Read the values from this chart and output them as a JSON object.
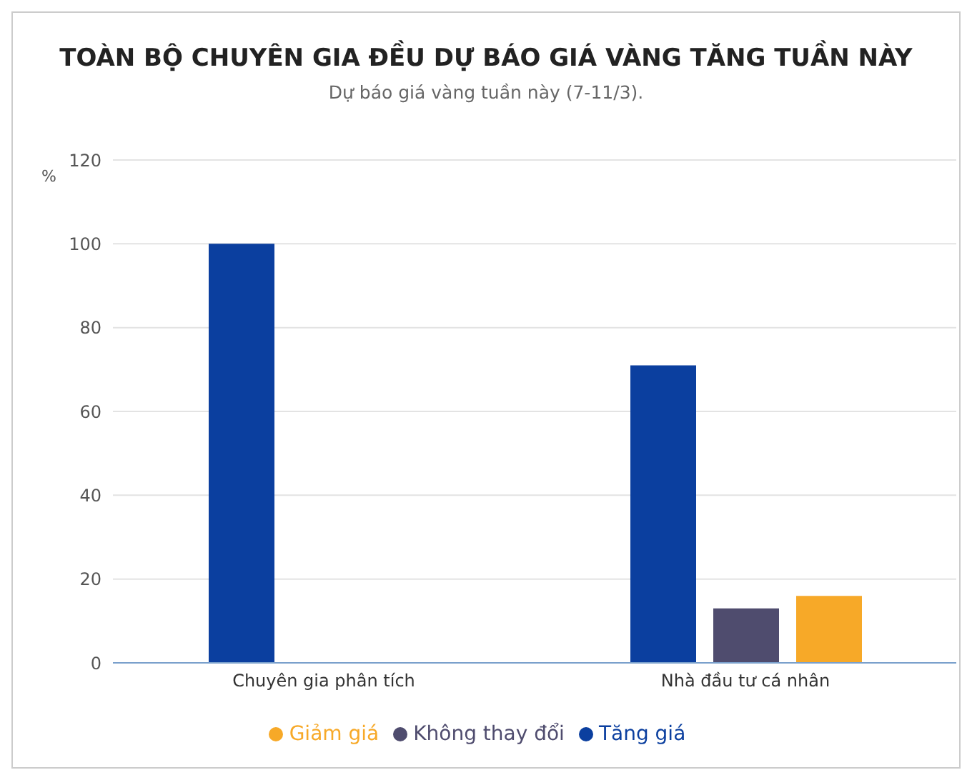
{
  "chart_data": {
    "type": "bar",
    "title": "TOÀN BỘ CHUYÊN GIA ĐỀU DỰ BÁO GIÁ VÀNG TĂNG TUẦN NÀY",
    "subtitle": "Dự báo giá vàng tuần này (7-11/3).",
    "ylabel": "%",
    "categories": [
      "Chuyên gia phân tích",
      "Nhà đầu tư cá nhân"
    ],
    "series": [
      {
        "name": "Tăng giá",
        "color": "#0b3f9f",
        "values": [
          100,
          71
        ]
      },
      {
        "name": "Không thay đổi",
        "color": "#4f4c6e",
        "values": [
          null,
          13
        ]
      },
      {
        "name": "Giảm giá",
        "color": "#f7a928",
        "values": [
          null,
          16
        ]
      }
    ],
    "ylim": [
      0,
      120
    ],
    "yticks": [
      0,
      20,
      40,
      60,
      80,
      100,
      120
    ],
    "grid": "y",
    "legend": "bottom"
  }
}
